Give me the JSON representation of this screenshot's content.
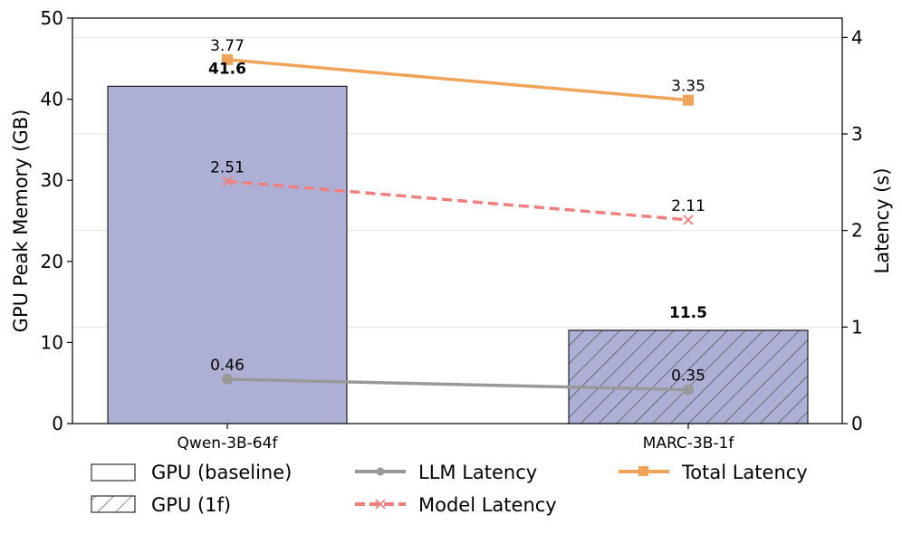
{
  "chart_data": {
    "type": "bar",
    "categories": [
      "Qwen-3B-64f",
      "MARC-3B-1f"
    ],
    "bars": {
      "ylabel": "GPU Peak Memory (GB)",
      "ylim": [
        0,
        50
      ],
      "yticks": [
        "0",
        "10",
        "20",
        "30",
        "40",
        "50"
      ],
      "values": [
        41.6,
        11.5
      ],
      "labels": [
        "41.6",
        "11.5"
      ],
      "fill": "#adb0d4",
      "hatched": [
        false,
        true
      ]
    },
    "lines_axis": {
      "ylabel": "Latency (s)",
      "ylim": [
        0,
        4.2
      ],
      "yticks": [
        "0",
        "1",
        "2",
        "3",
        "4"
      ]
    },
    "series": [
      {
        "name": "LLM Latency",
        "values": [
          0.46,
          0.35
        ],
        "labels": [
          "0.46",
          "0.35"
        ],
        "color": "#999999",
        "marker": "circle",
        "dash": "solid"
      },
      {
        "name": "Model Latency",
        "values": [
          2.51,
          2.11
        ],
        "labels": [
          "2.51",
          "2.11"
        ],
        "color": "#f08080",
        "marker": "x",
        "dash": "dashed"
      },
      {
        "name": "Total Latency",
        "values": [
          3.77,
          3.35
        ],
        "labels": [
          "3.77",
          "3.35"
        ],
        "color": "#f0a45a",
        "marker": "square",
        "dash": "solid"
      }
    ],
    "legend": {
      "placement": "bottom",
      "entries": [
        "GPU (baseline)",
        "GPU (1f)",
        "LLM Latency",
        "Model Latency",
        "Total Latency"
      ]
    },
    "grid": true
  }
}
